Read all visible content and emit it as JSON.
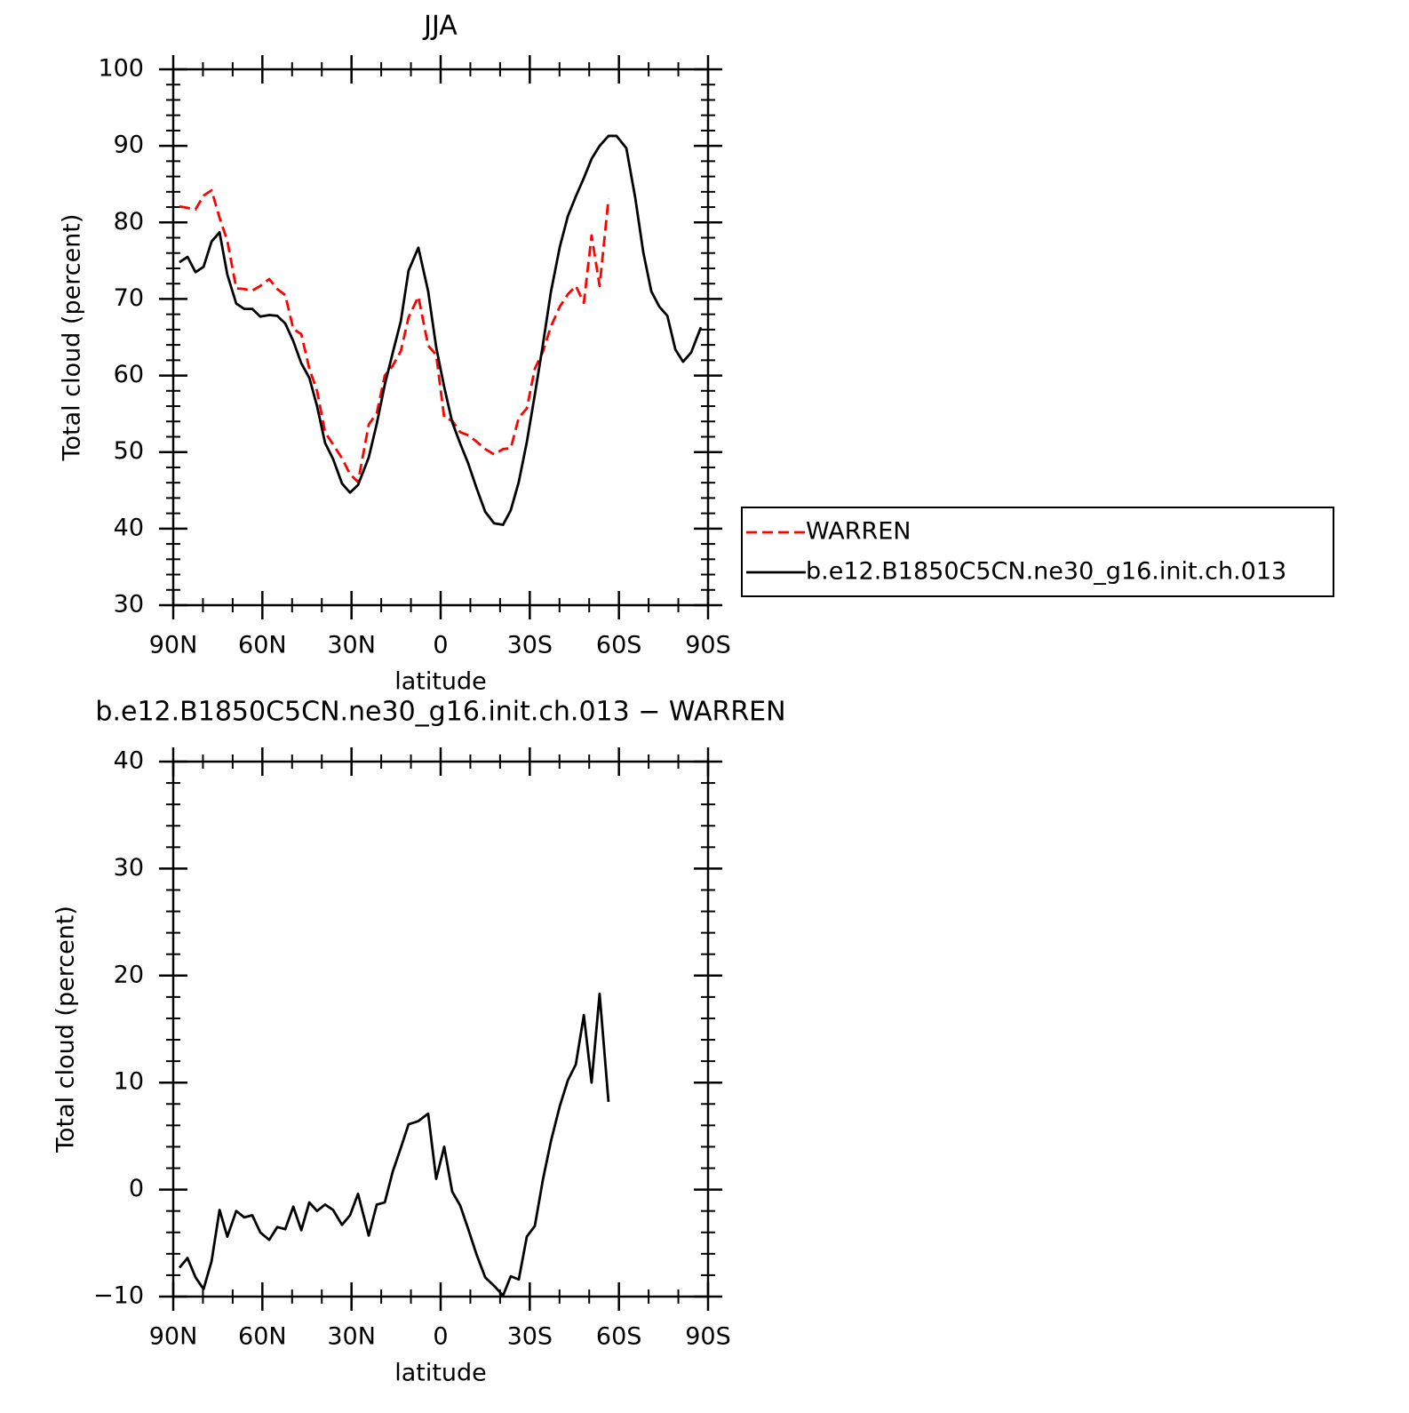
{
  "chart_data": [
    {
      "type": "line",
      "title": "JJA",
      "xlabel": "latitude",
      "ylabel": "Total cloud (percent)",
      "xlim": [
        90,
        -90
      ],
      "ylim": [
        30,
        100
      ],
      "xticks": [
        {
          "value": 90,
          "label": "90N"
        },
        {
          "value": 60,
          "label": "60N"
        },
        {
          "value": 30,
          "label": "30N"
        },
        0,
        {
          "value": -30,
          "label": "30S"
        },
        {
          "value": -60,
          "label": "60S"
        },
        {
          "value": -90,
          "label": "90S"
        }
      ],
      "xminorticks": [
        80,
        70,
        50,
        40,
        20,
        10,
        -10,
        -20,
        -40,
        -50,
        -70,
        -80
      ],
      "yticks": [
        30,
        40,
        50,
        60,
        70,
        80,
        90,
        100
      ],
      "yminorticks": [
        32,
        34,
        36,
        38,
        42,
        44,
        46,
        48,
        52,
        54,
        56,
        58,
        62,
        64,
        66,
        68,
        72,
        74,
        76,
        78,
        82,
        84,
        86,
        88,
        92,
        94,
        96,
        98
      ],
      "legend": "right",
      "x": [
        87.9,
        85.2,
        82.5,
        79.8,
        77.1,
        74.4,
        71.8,
        68.8,
        66.1,
        63.4,
        60.7,
        57.7,
        55.0,
        52.3,
        49.6,
        46.9,
        44.2,
        41.6,
        38.9,
        36.2,
        33.2,
        30.5,
        27.8,
        24.2,
        21.5,
        18.8,
        16.1,
        13.4,
        10.8,
        7.5,
        4.2,
        1.5,
        -1.2,
        -3.9,
        -6.6,
        -9.3,
        -12.0,
        -15.0,
        -18.0,
        -21.0,
        -23.6,
        -26.3,
        -29.0,
        -31.7,
        -34.4,
        -37.1,
        -40.1,
        -42.8,
        -45.5,
        -48.2,
        -50.8,
        -53.5,
        -56.5,
        -59.2,
        -62.5,
        -65.5,
        -68.2,
        -70.9,
        -73.6,
        -76.3,
        -79.0,
        -81.6,
        -84.3,
        -87.6
      ],
      "series": [
        {
          "name": "WARREN",
          "color": "#ff0000",
          "dashed": true,
          "values": [
            82.1,
            81.9,
            81.7,
            83.5,
            84.2,
            80.6,
            77.6,
            71.4,
            71.3,
            71.1,
            71.7,
            72.6,
            71.3,
            70.5,
            66.1,
            65.4,
            60.9,
            58.0,
            52.6,
            51.0,
            49.2,
            47.1,
            46.1,
            53.6,
            55.1,
            60.0,
            61.3,
            63.2,
            67.6,
            70.3,
            63.9,
            62.7,
            54.5,
            54.1,
            52.6,
            52.2,
            51.4,
            50.4,
            49.7,
            50.4,
            50.5,
            54.5,
            55.7,
            60.9,
            63.1,
            66.4,
            69.0,
            70.6,
            71.7,
            69.5,
            78.3,
            71.7,
            83.1,
            null,
            null,
            null,
            null,
            null,
            null,
            null,
            null,
            null,
            null,
            null
          ]
        },
        {
          "name": "b.e12.B1850C5CN.ne30_g16.init.ch.013",
          "color": "#000000",
          "dashed": false,
          "values": [
            74.8,
            75.5,
            73.5,
            74.2,
            77.5,
            78.7,
            73.2,
            69.4,
            68.7,
            68.7,
            67.7,
            67.9,
            67.8,
            66.8,
            64.5,
            61.6,
            59.7,
            56.0,
            51.2,
            49.1,
            45.9,
            44.7,
            45.7,
            49.3,
            53.7,
            58.8,
            63.0,
            67.1,
            73.7,
            76.7,
            71.0,
            63.7,
            58.5,
            53.9,
            51.1,
            48.5,
            45.4,
            42.2,
            40.7,
            40.5,
            42.4,
            46.1,
            51.3,
            57.5,
            64.0,
            70.9,
            76.8,
            80.8,
            83.4,
            85.8,
            88.3,
            90.0,
            91.3,
            91.3,
            89.7,
            83.2,
            76.1,
            71.0,
            69.0,
            67.8,
            63.4,
            61.8,
            63.0,
            66.3
          ]
        }
      ]
    },
    {
      "type": "line",
      "title": "b.e12.B1850C5CN.ne30_g16.init.ch.013 − WARREN",
      "xlabel": "latitude",
      "ylabel": "Total cloud (percent)",
      "xlim": [
        90,
        -90
      ],
      "ylim": [
        -10,
        40
      ],
      "xticks": [
        {
          "value": 90,
          "label": "90N"
        },
        {
          "value": 60,
          "label": "60N"
        },
        {
          "value": 30,
          "label": "30N"
        },
        0,
        {
          "value": -30,
          "label": "30S"
        },
        {
          "value": -60,
          "label": "60S"
        },
        {
          "value": -90,
          "label": "90S"
        }
      ],
      "xminorticks": [
        80,
        70,
        50,
        40,
        20,
        10,
        -10,
        -20,
        -40,
        -50,
        -70,
        -80
      ],
      "yticks": [
        {
          "value": -10,
          "label": "−10"
        },
        0,
        10,
        20,
        30,
        40
      ],
      "yminorticks": [
        -8,
        -6,
        -4,
        -2,
        2,
        4,
        6,
        8,
        12,
        14,
        16,
        18,
        22,
        24,
        26,
        28,
        32,
        34,
        36,
        38
      ],
      "x": [
        87.9,
        85.2,
        82.5,
        79.8,
        77.1,
        74.4,
        71.8,
        68.8,
        66.1,
        63.4,
        60.7,
        57.7,
        55.0,
        52.3,
        49.6,
        46.9,
        44.2,
        41.6,
        38.9,
        36.2,
        33.2,
        30.5,
        27.8,
        24.2,
        21.5,
        18.8,
        16.1,
        13.4,
        10.8,
        7.5,
        4.2,
        1.5,
        -1.2,
        -3.9,
        -6.6,
        -9.3,
        -12.0,
        -15.0,
        -18.0,
        -21.0,
        -23.6,
        -26.3,
        -29.0,
        -31.7,
        -34.4,
        -37.1,
        -40.1,
        -42.8,
        -45.5,
        -48.2,
        -50.8,
        -53.5,
        -56.5
      ],
      "series": [
        {
          "color": "#000000",
          "dashed": false,
          "values": [
            -7.3,
            -6.4,
            -8.2,
            -9.3,
            -6.7,
            -1.9,
            -4.4,
            -2.0,
            -2.6,
            -2.4,
            -4.0,
            -4.7,
            -3.5,
            -3.7,
            -1.6,
            -3.8,
            -1.2,
            -2.0,
            -1.4,
            -1.9,
            -3.3,
            -2.4,
            -0.4,
            -4.3,
            -1.4,
            -1.2,
            1.7,
            3.9,
            6.1,
            6.4,
            7.1,
            1.0,
            4.0,
            -0.2,
            -1.5,
            -3.7,
            -6.0,
            -8.2,
            -9.0,
            -9.9,
            -8.1,
            -8.4,
            -4.4,
            -3.4,
            0.9,
            4.5,
            7.8,
            10.2,
            11.7,
            16.3,
            10.0,
            18.3,
            8.2
          ]
        }
      ]
    }
  ]
}
